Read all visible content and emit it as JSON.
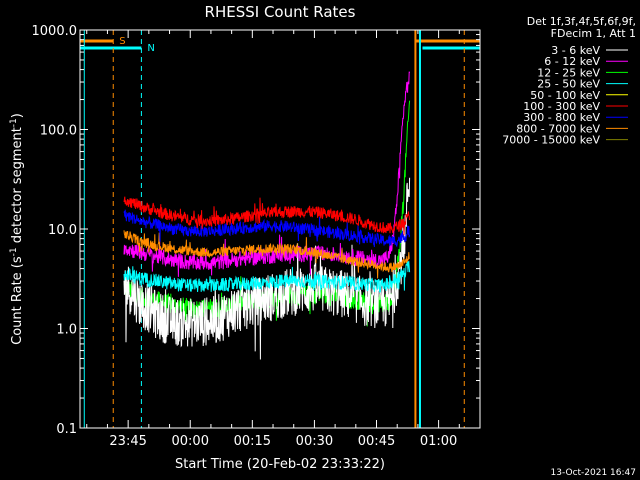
{
  "chart_data": {
    "type": "line",
    "title": "RHESSI Count Rates",
    "xlabel": "Start Time (20-Feb-02 23:33:22)",
    "ylabel_parts": [
      "Count Rate (s",
      "-1",
      " detector segment",
      "-1",
      ")"
    ],
    "y_scale": "log",
    "ylim": [
      0.1,
      1000
    ],
    "y_ticks": [
      {
        "v": 1000,
        "label": "1000.0"
      },
      {
        "v": 100,
        "label": "100.0"
      },
      {
        "v": 10,
        "label": "10.0"
      },
      {
        "v": 1,
        "label": "1.0"
      },
      {
        "v": 0.1,
        "label": "0.1"
      }
    ],
    "x_unit": "minutes after 23:30",
    "xlim": [
      3.37,
      100
    ],
    "x_ticks": [
      {
        "v": 15,
        "label": "23:45"
      },
      {
        "v": 30,
        "label": "00:00"
      },
      {
        "v": 45,
        "label": "00:15"
      },
      {
        "v": 60,
        "label": "00:30"
      },
      {
        "v": 75,
        "label": "00:45"
      },
      {
        "v": 90,
        "label": "01:00"
      }
    ],
    "legend_header": [
      "Det 1f,3f,4f,5f,6f,9f,",
      "FDecim 1, Att 1"
    ],
    "legend_placement": "right",
    "timestamp": "13-Oct-2021 16:47",
    "markers": [
      {
        "label": "S",
        "color": "#ff8c00"
      },
      {
        "label": "N",
        "color": "#00ffff"
      }
    ],
    "series": [
      {
        "name": "3 - 6 keV",
        "color": "#ffffff",
        "points": [
          [
            14,
            2.8
          ],
          [
            15,
            2.6
          ],
          [
            18,
            1.8
          ],
          [
            20,
            1.6
          ],
          [
            22,
            1.35
          ],
          [
            25,
            1.2
          ],
          [
            28,
            1.15
          ],
          [
            32,
            1.15
          ],
          [
            36,
            1.2
          ],
          [
            40,
            1.5
          ],
          [
            44,
            1.75
          ],
          [
            48,
            2.0
          ],
          [
            52,
            2.2
          ],
          [
            56,
            2.4
          ],
          [
            60,
            2.5
          ],
          [
            64,
            2.35
          ],
          [
            68,
            2.15
          ],
          [
            72,
            1.85
          ],
          [
            76,
            1.75
          ],
          [
            78,
            1.8
          ],
          [
            79,
            2.2
          ],
          [
            80,
            3.2
          ],
          [
            81,
            5
          ],
          [
            82,
            10
          ],
          [
            82.6,
            25
          ],
          [
            83,
            32
          ]
        ],
        "noise": 0.25
      },
      {
        "name": "6 - 12 keV",
        "color": "#ff00ff",
        "points": [
          [
            14,
            6.5
          ],
          [
            18,
            5.8
          ],
          [
            22,
            5.3
          ],
          [
            26,
            4.9
          ],
          [
            30,
            4.6
          ],
          [
            36,
            4.6
          ],
          [
            42,
            5.0
          ],
          [
            48,
            5.3
          ],
          [
            54,
            5.6
          ],
          [
            60,
            5.7
          ],
          [
            66,
            5.5
          ],
          [
            72,
            5.0
          ],
          [
            76,
            4.8
          ],
          [
            78,
            5.2
          ],
          [
            79,
            8
          ],
          [
            80,
            20
          ],
          [
            80.8,
            60
          ],
          [
            81.5,
            150
          ],
          [
            82.2,
            250
          ],
          [
            83,
            330
          ]
        ],
        "noise": 0.08
      },
      {
        "name": "12 - 25 keV",
        "color": "#00ff00",
        "points": [
          [
            14,
            2.6
          ],
          [
            18,
            2.1
          ],
          [
            22,
            1.9
          ],
          [
            26,
            1.7
          ],
          [
            30,
            1.6
          ],
          [
            36,
            1.6
          ],
          [
            42,
            1.8
          ],
          [
            48,
            2.0
          ],
          [
            54,
            2.1
          ],
          [
            60,
            2.2
          ],
          [
            66,
            2.05
          ],
          [
            72,
            1.9
          ],
          [
            76,
            1.75
          ],
          [
            78,
            1.8
          ],
          [
            79,
            2.3
          ],
          [
            80,
            4
          ],
          [
            80.8,
            8
          ],
          [
            81.5,
            20
          ],
          [
            82.3,
            70
          ],
          [
            83,
            190
          ]
        ],
        "noise": 0.1
      },
      {
        "name": "25 - 50 keV",
        "color": "#00ffff",
        "points": [
          [
            14,
            3.5
          ],
          [
            18,
            3.2
          ],
          [
            22,
            3.0
          ],
          [
            26,
            2.8
          ],
          [
            30,
            2.7
          ],
          [
            36,
            2.7
          ],
          [
            42,
            2.8
          ],
          [
            48,
            2.9
          ],
          [
            54,
            3.0
          ],
          [
            60,
            3.0
          ],
          [
            66,
            2.9
          ],
          [
            72,
            2.8
          ],
          [
            76,
            2.7
          ],
          [
            78,
            2.8
          ],
          [
            80,
            3.2
          ],
          [
            82,
            3.7
          ],
          [
            83,
            4.3
          ]
        ],
        "noise": 0.07
      },
      {
        "name": "50 - 100 keV",
        "color": "#ffff00",
        "points": [],
        "noise": 0
      },
      {
        "name": "100 - 300 keV",
        "color": "#ff0000",
        "points": [
          [
            14,
            20
          ],
          [
            18,
            17
          ],
          [
            22,
            15
          ],
          [
            26,
            13.5
          ],
          [
            30,
            12.5
          ],
          [
            34,
            12
          ],
          [
            38,
            12.3
          ],
          [
            42,
            13
          ],
          [
            46,
            14
          ],
          [
            50,
            14.5
          ],
          [
            54,
            15
          ],
          [
            58,
            15
          ],
          [
            62,
            14.5
          ],
          [
            66,
            13.5
          ],
          [
            70,
            12.5
          ],
          [
            74,
            11
          ],
          [
            78,
            10
          ],
          [
            80,
            10.5
          ],
          [
            82,
            12
          ],
          [
            83,
            14
          ]
        ],
        "noise": 0.06
      },
      {
        "name": "300 - 800 keV",
        "color": "#0000ff",
        "points": [
          [
            14,
            14
          ],
          [
            18,
            12
          ],
          [
            22,
            11
          ],
          [
            26,
            10
          ],
          [
            30,
            9.5
          ],
          [
            34,
            9.5
          ],
          [
            38,
            9.8
          ],
          [
            42,
            10.2
          ],
          [
            46,
            10.5
          ],
          [
            50,
            10.8
          ],
          [
            54,
            10.5
          ],
          [
            58,
            10
          ],
          [
            62,
            9.5
          ],
          [
            66,
            9
          ],
          [
            70,
            8.5
          ],
          [
            74,
            8
          ],
          [
            78,
            7.5
          ],
          [
            80,
            7.7
          ],
          [
            82,
            8.5
          ],
          [
            83,
            9.5
          ]
        ],
        "noise": 0.06
      },
      {
        "name": "800 - 7000 keV",
        "color": "#ff8c00",
        "points": [
          [
            14,
            9
          ],
          [
            18,
            7.5
          ],
          [
            22,
            6.8
          ],
          [
            26,
            6.3
          ],
          [
            30,
            6
          ],
          [
            34,
            5.8
          ],
          [
            38,
            5.9
          ],
          [
            42,
            6.1
          ],
          [
            46,
            6.3
          ],
          [
            50,
            6.4
          ],
          [
            54,
            6.3
          ],
          [
            58,
            6.0
          ],
          [
            62,
            5.6
          ],
          [
            66,
            5.1
          ],
          [
            70,
            4.7
          ],
          [
            74,
            4.4
          ],
          [
            78,
            4.1
          ],
          [
            80,
            4.2
          ],
          [
            82,
            4.7
          ],
          [
            83,
            5.5
          ]
        ],
        "noise": 0.05
      },
      {
        "name": "7000 - 15000 keV",
        "color": "#808000",
        "points": [],
        "noise": 0
      }
    ]
  }
}
